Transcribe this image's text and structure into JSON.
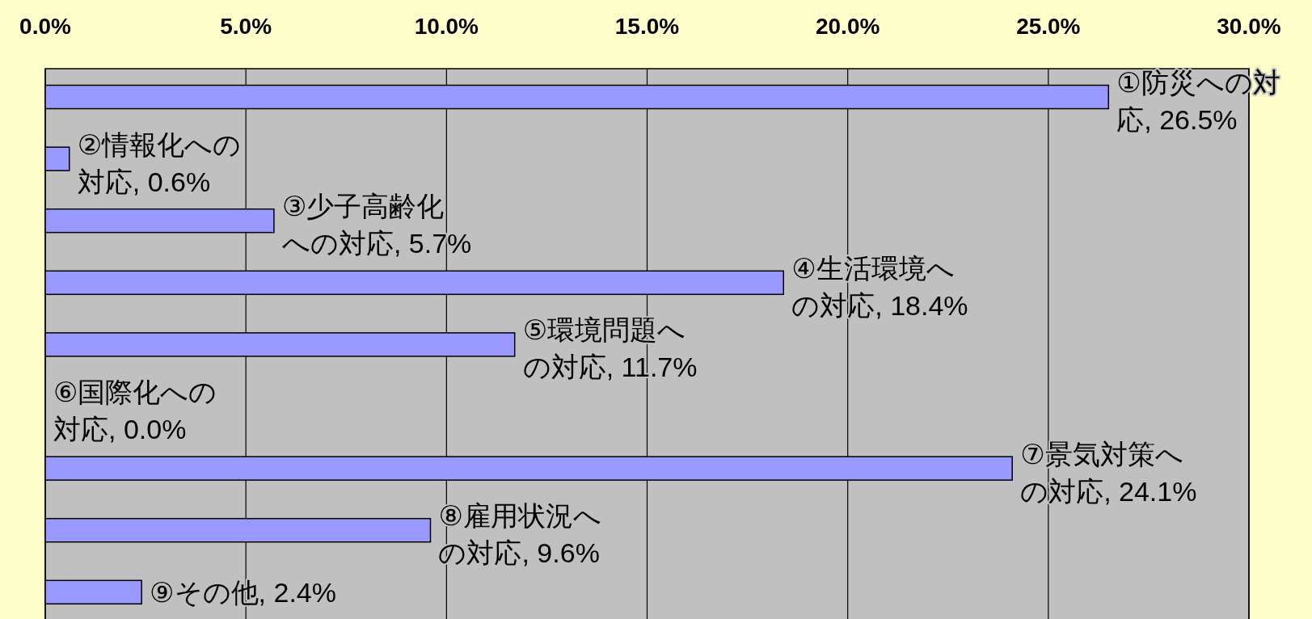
{
  "chart_data": {
    "type": "bar",
    "orientation": "horizontal",
    "categories": [
      null,
      null,
      null,
      null,
      null,
      null,
      null,
      null,
      null
    ],
    "values": [
      26.5,
      0.6,
      5.7,
      18.4,
      11.7,
      0.0,
      24.1,
      9.6,
      2.4
    ],
    "value_labels": [
      "①防災への対応, 26.5%",
      "②情報化への対応, 0.6%",
      "③少子高齢化への対応, 5.7%",
      "④生活環境への対応, 18.4%",
      "⑤環境問題への対応, 11.7%",
      "⑥国際化への対応, 0.0%",
      "⑦景気対策への対応, 24.1%",
      "⑧雇用状況への対応, 9.6%",
      "⑨その他, 2.4%"
    ],
    "color": "#9999ff",
    "xlim": [
      0,
      30
    ],
    "xticks": [
      {
        "value": 0,
        "label": "0.0%"
      },
      {
        "value": 5,
        "label": "5.0%"
      },
      {
        "value": 10,
        "label": "10.0%"
      },
      {
        "value": 15,
        "label": "15.0%"
      },
      {
        "value": 20,
        "label": "20.0%"
      },
      {
        "value": 25,
        "label": "25.0%"
      },
      {
        "value": 30,
        "label": "30.0%"
      }
    ],
    "grid": "x"
  }
}
